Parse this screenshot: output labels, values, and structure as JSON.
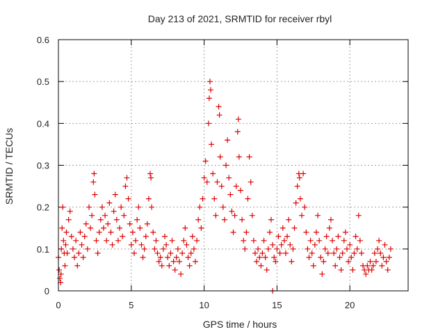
{
  "chart_data": {
    "type": "scatter",
    "title": "Day 213 of 2021, SRMTID for receiver rbyl",
    "xlabel": "GPS time / hours",
    "ylabel": "SRMTID / TECUs",
    "xlim": [
      0,
      24
    ],
    "ylim": [
      0,
      0.6
    ],
    "x_ticks": [
      0,
      5,
      10,
      15,
      20
    ],
    "x_tick_labels": [
      "0",
      "5",
      "10",
      "15",
      "20"
    ],
    "y_ticks": [
      0,
      0.1,
      0.2,
      0.3,
      0.4,
      0.5,
      0.6
    ],
    "y_tick_labels": [
      "0",
      "0.1",
      "0.2",
      "0.3",
      "0.4",
      "0.5",
      "0.6"
    ],
    "grid": true,
    "marker": "plus",
    "color": "#dd0000",
    "series": [
      {
        "name": "SRMTID",
        "points": [
          [
            0.0,
            0.08
          ],
          [
            0.05,
            0.05
          ],
          [
            0.1,
            0.03
          ],
          [
            0.15,
            0.02
          ],
          [
            0.18,
            0.04
          ],
          [
            0.2,
            0.1
          ],
          [
            0.25,
            0.15
          ],
          [
            0.3,
            0.2
          ],
          [
            0.35,
            0.12
          ],
          [
            0.4,
            0.09
          ],
          [
            0.45,
            0.06
          ],
          [
            0.5,
            0.11
          ],
          [
            0.55,
            0.14
          ],
          [
            0.6,
            0.09
          ],
          [
            0.7,
            0.17
          ],
          [
            0.8,
            0.19
          ],
          [
            0.9,
            0.13
          ],
          [
            1.0,
            0.1
          ],
          [
            1.1,
            0.08
          ],
          [
            1.2,
            0.12
          ],
          [
            1.3,
            0.06
          ],
          [
            1.4,
            0.09
          ],
          [
            1.5,
            0.14
          ],
          [
            1.6,
            0.11
          ],
          [
            1.7,
            0.08
          ],
          [
            1.8,
            0.13
          ],
          [
            1.9,
            0.16
          ],
          [
            2.0,
            0.1
          ],
          [
            2.1,
            0.2
          ],
          [
            2.2,
            0.15
          ],
          [
            2.3,
            0.18
          ],
          [
            2.4,
            0.26
          ],
          [
            2.45,
            0.28
          ],
          [
            2.5,
            0.23
          ],
          [
            2.6,
            0.12
          ],
          [
            2.7,
            0.09
          ],
          [
            2.8,
            0.14
          ],
          [
            2.9,
            0.17
          ],
          [
            3.0,
            0.2
          ],
          [
            3.1,
            0.15
          ],
          [
            3.2,
            0.18
          ],
          [
            3.3,
            0.12
          ],
          [
            3.4,
            0.16
          ],
          [
            3.5,
            0.21
          ],
          [
            3.6,
            0.14
          ],
          [
            3.7,
            0.11
          ],
          [
            3.8,
            0.19
          ],
          [
            3.9,
            0.23
          ],
          [
            4.0,
            0.17
          ],
          [
            4.1,
            0.12
          ],
          [
            4.2,
            0.15
          ],
          [
            4.3,
            0.2
          ],
          [
            4.4,
            0.13
          ],
          [
            4.5,
            0.18
          ],
          [
            4.6,
            0.25
          ],
          [
            4.7,
            0.27
          ],
          [
            4.8,
            0.22
          ],
          [
            4.9,
            0.16
          ],
          [
            5.0,
            0.11
          ],
          [
            5.1,
            0.14
          ],
          [
            5.2,
            0.09
          ],
          [
            5.3,
            0.12
          ],
          [
            5.4,
            0.17
          ],
          [
            5.5,
            0.2
          ],
          [
            5.6,
            0.15
          ],
          [
            5.7,
            0.11
          ],
          [
            5.8,
            0.08
          ],
          [
            5.9,
            0.1
          ],
          [
            6.0,
            0.13
          ],
          [
            6.1,
            0.16
          ],
          [
            6.2,
            0.22
          ],
          [
            6.3,
            0.28
          ],
          [
            6.35,
            0.27
          ],
          [
            6.4,
            0.2
          ],
          [
            6.5,
            0.14
          ],
          [
            6.6,
            0.1
          ],
          [
            6.7,
            0.12
          ],
          [
            6.8,
            0.09
          ],
          [
            6.9,
            0.07
          ],
          [
            7.0,
            0.08
          ],
          [
            7.1,
            0.06
          ],
          [
            7.2,
            0.1
          ],
          [
            7.3,
            0.13
          ],
          [
            7.4,
            0.11
          ],
          [
            7.5,
            0.08
          ],
          [
            7.6,
            0.06
          ],
          [
            7.7,
            0.09
          ],
          [
            7.8,
            0.12
          ],
          [
            7.9,
            0.07
          ],
          [
            8.0,
            0.05
          ],
          [
            8.1,
            0.08
          ],
          [
            8.2,
            0.1
          ],
          [
            8.3,
            0.07
          ],
          [
            8.4,
            0.04
          ],
          [
            8.5,
            0.09
          ],
          [
            8.6,
            0.12
          ],
          [
            8.7,
            0.15
          ],
          [
            8.8,
            0.11
          ],
          [
            8.9,
            0.08
          ],
          [
            9.0,
            0.06
          ],
          [
            9.1,
            0.09
          ],
          [
            9.2,
            0.13
          ],
          [
            9.3,
            0.1
          ],
          [
            9.4,
            0.07
          ],
          [
            9.5,
            0.12
          ],
          [
            9.6,
            0.17
          ],
          [
            9.7,
            0.2
          ],
          [
            9.8,
            0.15
          ],
          [
            9.9,
            0.22
          ],
          [
            10.0,
            0.27
          ],
          [
            10.1,
            0.31
          ],
          [
            10.2,
            0.26
          ],
          [
            10.3,
            0.4
          ],
          [
            10.35,
            0.46
          ],
          [
            10.4,
            0.5
          ],
          [
            10.45,
            0.48
          ],
          [
            10.5,
            0.35
          ],
          [
            10.6,
            0.28
          ],
          [
            10.7,
            0.22
          ],
          [
            10.8,
            0.18
          ],
          [
            10.9,
            0.26
          ],
          [
            11.0,
            0.44
          ],
          [
            11.05,
            0.42
          ],
          [
            11.1,
            0.32
          ],
          [
            11.2,
            0.25
          ],
          [
            11.3,
            0.2
          ],
          [
            11.4,
            0.17
          ],
          [
            11.5,
            0.3
          ],
          [
            11.6,
            0.36
          ],
          [
            11.7,
            0.27
          ],
          [
            11.8,
            0.23
          ],
          [
            11.9,
            0.19
          ],
          [
            12.0,
            0.14
          ],
          [
            12.1,
            0.18
          ],
          [
            12.2,
            0.25
          ],
          [
            12.3,
            0.38
          ],
          [
            12.35,
            0.41
          ],
          [
            12.4,
            0.32
          ],
          [
            12.5,
            0.24
          ],
          [
            12.6,
            0.17
          ],
          [
            12.7,
            0.12
          ],
          [
            12.8,
            0.1
          ],
          [
            12.9,
            0.14
          ],
          [
            13.0,
            0.22
          ],
          [
            13.1,
            0.32
          ],
          [
            13.2,
            0.26
          ],
          [
            13.3,
            0.18
          ],
          [
            13.4,
            0.12
          ],
          [
            13.5,
            0.09
          ],
          [
            13.6,
            0.07
          ],
          [
            13.7,
            0.1
          ],
          [
            13.8,
            0.08
          ],
          [
            13.9,
            0.06
          ],
          [
            14.0,
            0.09
          ],
          [
            14.1,
            0.12
          ],
          [
            14.2,
            0.08
          ],
          [
            14.3,
            0.05
          ],
          [
            14.4,
            0.1
          ],
          [
            14.5,
            0.14
          ],
          [
            14.6,
            0.17
          ],
          [
            14.7,
            0.11
          ],
          [
            14.8,
            0.08
          ],
          [
            14.9,
            0.07
          ],
          [
            15.0,
            0.1
          ],
          [
            15.1,
            0.13
          ],
          [
            15.2,
            0.09
          ],
          [
            15.3,
            0.11
          ],
          [
            15.4,
            0.15
          ],
          [
            15.5,
            0.12
          ],
          [
            15.6,
            0.09
          ],
          [
            15.7,
            0.13
          ],
          [
            15.8,
            0.17
          ],
          [
            15.9,
            0.11
          ],
          [
            16.0,
            0.07
          ],
          [
            16.1,
            0.1
          ],
          [
            16.2,
            0.15
          ],
          [
            16.3,
            0.21
          ],
          [
            16.4,
            0.25
          ],
          [
            16.5,
            0.28
          ],
          [
            16.55,
            0.27
          ],
          [
            16.6,
            0.22
          ],
          [
            16.7,
            0.18
          ],
          [
            16.8,
            0.28
          ],
          [
            16.9,
            0.2
          ],
          [
            17.0,
            0.14
          ],
          [
            17.1,
            0.1
          ],
          [
            17.2,
            0.08
          ],
          [
            17.3,
            0.12
          ],
          [
            17.4,
            0.09
          ],
          [
            17.5,
            0.06
          ],
          [
            17.6,
            0.11
          ],
          [
            17.7,
            0.14
          ],
          [
            17.8,
            0.18
          ],
          [
            17.9,
            0.12
          ],
          [
            18.0,
            0.08
          ],
          [
            18.1,
            0.04
          ],
          [
            18.2,
            0.07
          ],
          [
            18.3,
            0.1
          ],
          [
            18.4,
            0.13
          ],
          [
            18.5,
            0.09
          ],
          [
            18.6,
            0.15
          ],
          [
            18.7,
            0.17
          ],
          [
            18.8,
            0.12
          ],
          [
            18.9,
            0.09
          ],
          [
            19.0,
            0.06
          ],
          [
            19.1,
            0.1
          ],
          [
            19.2,
            0.13
          ],
          [
            19.3,
            0.08
          ],
          [
            19.4,
            0.05
          ],
          [
            19.5,
            0.09
          ],
          [
            19.6,
            0.12
          ],
          [
            19.7,
            0.14
          ],
          [
            19.8,
            0.1
          ],
          [
            19.9,
            0.07
          ],
          [
            20.0,
            0.11
          ],
          [
            20.1,
            0.08
          ],
          [
            20.2,
            0.05
          ],
          [
            20.3,
            0.09
          ],
          [
            20.4,
            0.13
          ],
          [
            20.5,
            0.1
          ],
          [
            20.6,
            0.18
          ],
          [
            20.7,
            0.12
          ],
          [
            20.8,
            0.09
          ],
          [
            20.9,
            0.06
          ],
          [
            21.0,
            0.05
          ],
          [
            21.1,
            0.04
          ],
          [
            21.2,
            0.06
          ],
          [
            21.3,
            0.05
          ],
          [
            21.4,
            0.07
          ],
          [
            21.5,
            0.05
          ],
          [
            21.6,
            0.06
          ],
          [
            21.7,
            0.09
          ],
          [
            21.8,
            0.07
          ],
          [
            21.9,
            0.1
          ],
          [
            22.0,
            0.12
          ],
          [
            22.1,
            0.09
          ],
          [
            22.2,
            0.06
          ],
          [
            22.3,
            0.08
          ],
          [
            22.4,
            0.11
          ],
          [
            22.5,
            0.07
          ],
          [
            22.6,
            0.05
          ],
          [
            22.7,
            0.08
          ],
          [
            22.8,
            0.1
          ],
          [
            14.7,
            0.0
          ]
        ]
      }
    ]
  }
}
